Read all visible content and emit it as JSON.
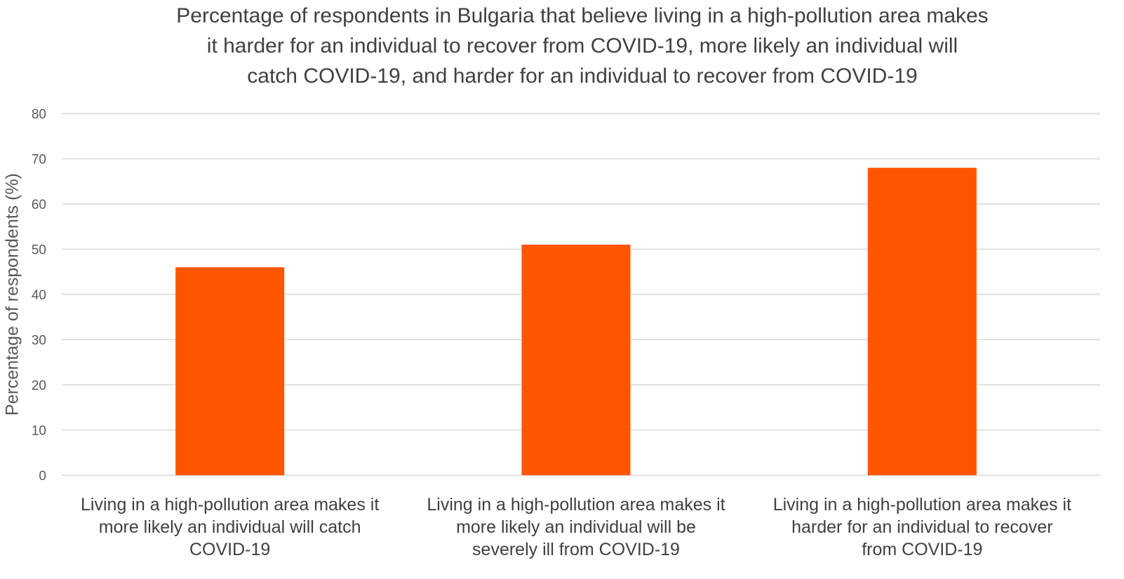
{
  "chart_data": {
    "type": "bar",
    "title_lines": [
      "Percentage of respondents in Bulgaria that believe living in a high-pollution area makes",
      "it harder for an individual to recover from COVID-19, more likely an individual will",
      "catch COVID-19, and harder for an individual to recover from COVID-19"
    ],
    "ylabel": "Percentage of respondents (%)",
    "xlabel": "",
    "ylim": [
      0,
      80
    ],
    "yticks": [
      0,
      10,
      20,
      30,
      40,
      50,
      60,
      70,
      80
    ],
    "grid": true,
    "bar_color": "#FF5500",
    "categories": [
      [
        "Living in a high-pollution area makes it",
        "more likely an individual will catch",
        "COVID-19"
      ],
      [
        "Living in a high-pollution area makes it",
        "more likely an individual will be",
        "severely ill from COVID-19"
      ],
      [
        "Living in a high-pollution area makes it",
        "harder for an individual to recover",
        "from COVID-19"
      ]
    ],
    "values": [
      46,
      51,
      68
    ]
  }
}
